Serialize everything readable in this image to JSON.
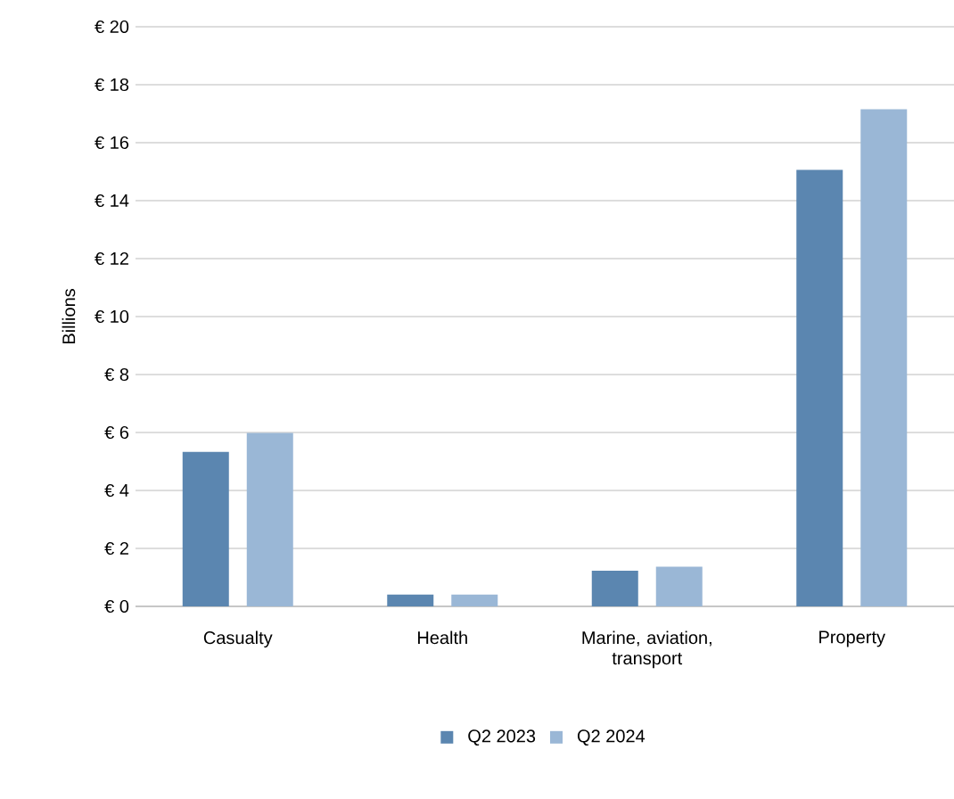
{
  "chart_data": {
    "type": "bar",
    "ylabel": "Billions",
    "categories": [
      "Casualty",
      "Health",
      "Marine, aviation, transport",
      "Property"
    ],
    "series": [
      {
        "name": "Q2 2023",
        "color": "#5b86b0",
        "values": [
          5.33,
          0.41,
          1.23,
          15.06
        ]
      },
      {
        "name": "Q2 2024",
        "color": "#9ab7d6",
        "values": [
          5.98,
          0.41,
          1.37,
          17.15
        ]
      }
    ],
    "ylim": [
      0,
      20
    ],
    "yticks": [
      {
        "value": 0,
        "label": "€ 0"
      },
      {
        "value": 2,
        "label": "€ 2"
      },
      {
        "value": 4,
        "label": "€ 4"
      },
      {
        "value": 6,
        "label": "€ 6"
      },
      {
        "value": 8,
        "label": "€ 8"
      },
      {
        "value": 10,
        "label": "€ 10"
      },
      {
        "value": 12,
        "label": "€ 12"
      },
      {
        "value": 14,
        "label": "€ 14"
      },
      {
        "value": 16,
        "label": "€ 16"
      },
      {
        "value": 18,
        "label": "€ 18"
      },
      {
        "value": 20,
        "label": "€ 20"
      }
    ],
    "grid": "y",
    "legend": "bottom"
  }
}
